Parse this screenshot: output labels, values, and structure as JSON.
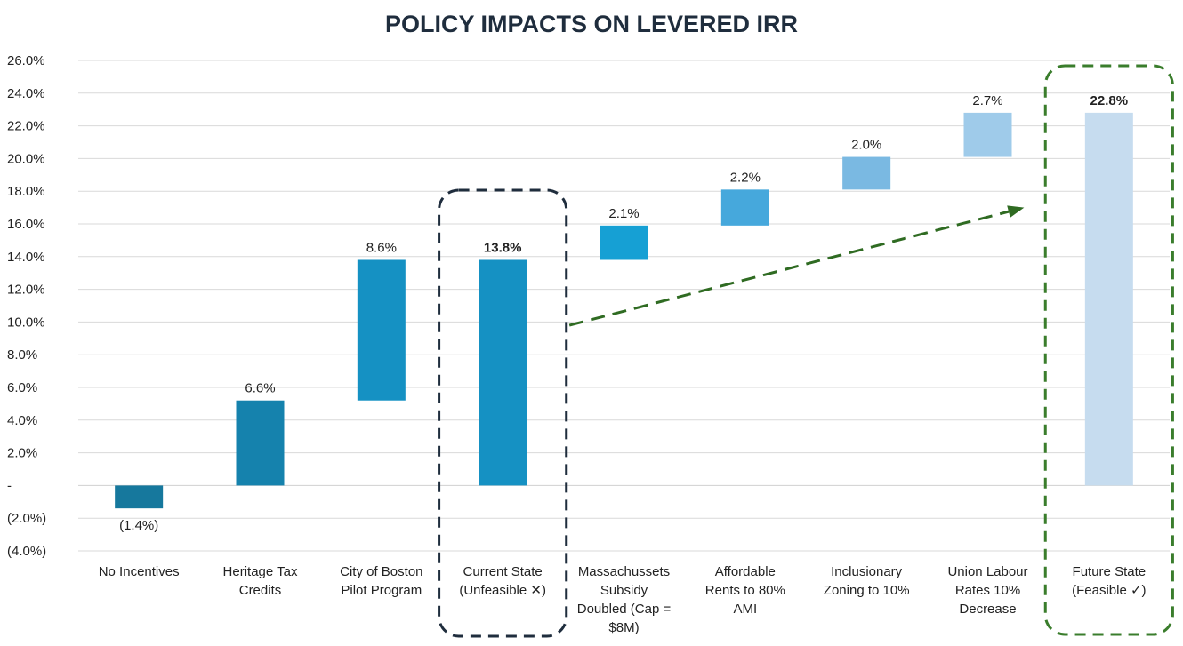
{
  "chart_data": {
    "type": "waterfall",
    "title": "POLICY IMPACTS ON LEVERED IRR",
    "xlabel": "",
    "ylabel": "",
    "ylim": [
      -4.0,
      26.0
    ],
    "yticks": [
      -4,
      -2,
      0,
      2,
      4,
      6,
      8,
      10,
      12,
      14,
      16,
      18,
      20,
      22,
      24,
      26
    ],
    "ytick_labels": [
      "(4.0%)",
      "(2.0%)",
      "-",
      "2.0%",
      "4.0%",
      "6.0%",
      "8.0%",
      "10.0%",
      "12.0%",
      "14.0%",
      "16.0%",
      "18.0%",
      "20.0%",
      "22.0%",
      "24.0%",
      "26.0%"
    ],
    "grid": true,
    "bars": [
      {
        "category": [
          "No Incentives"
        ],
        "start": 0,
        "end": -1.4,
        "label": "(1.4%)",
        "color": "#16789d",
        "label_bold": false
      },
      {
        "category": [
          "Heritage Tax",
          "Credits"
        ],
        "start": 0,
        "end": 5.2,
        "label": "6.6%",
        "color": "#1582ad",
        "label_bold": false
      },
      {
        "category": [
          "City of Boston",
          "Pilot Program"
        ],
        "start": 5.2,
        "end": 13.8,
        "label": "8.6%",
        "color": "#1591c3",
        "label_bold": false
      },
      {
        "category": [
          "Current State",
          "(Unfeasible ✕)"
        ],
        "start": 0,
        "end": 13.8,
        "label": "13.8%",
        "color": "#1591c3",
        "label_bold": true
      },
      {
        "category": [
          "Massachussets",
          "Subsidy",
          "Doubled (Cap =",
          "$8M)"
        ],
        "start": 13.8,
        "end": 15.9,
        "label": "2.1%",
        "color": "#16a0d4",
        "label_bold": false
      },
      {
        "category": [
          "Affordable",
          "Rents to 80%",
          "AMI"
        ],
        "start": 15.9,
        "end": 18.1,
        "label": "2.2%",
        "color": "#46a8dc",
        "label_bold": false
      },
      {
        "category": [
          "Inclusionary",
          "Zoning to 10%"
        ],
        "start": 18.1,
        "end": 20.1,
        "label": "2.0%",
        "color": "#7ab9e2",
        "label_bold": false
      },
      {
        "category": [
          "Union Labour",
          "Rates 10%",
          "Decrease"
        ],
        "start": 20.1,
        "end": 22.8,
        "label": "2.7%",
        "color": "#9fcbea",
        "label_bold": false
      },
      {
        "category": [
          "Future State",
          "(Feasible ✓)"
        ],
        "start": 0,
        "end": 22.8,
        "label": "22.8%",
        "color": "#c6dcef",
        "label_bold": true
      }
    ],
    "annotations": [
      {
        "type": "dashed-box",
        "around": "Current State",
        "color": "#1f2d3d"
      },
      {
        "type": "dashed-box",
        "around": "Future State",
        "color": "#3a7d2c"
      },
      {
        "type": "dashed-arrow",
        "from_category": "Current State",
        "to_category": "Union Labour",
        "from_value": 9.8,
        "to_value": 17.0,
        "color": "#2f6b22"
      }
    ]
  }
}
